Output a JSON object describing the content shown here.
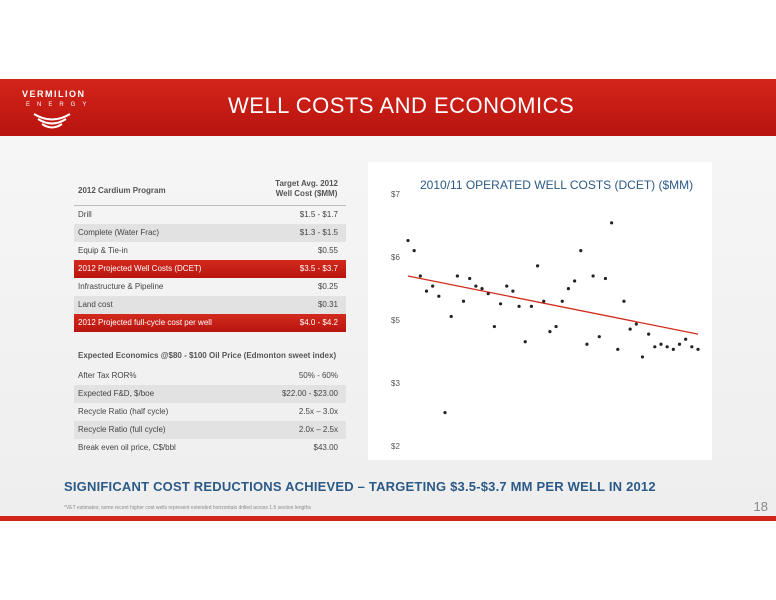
{
  "logo": {
    "name": "VERMILION",
    "sub": "ENERGY"
  },
  "slide_title": "WELL COSTS AND ECONOMICS",
  "program_table": {
    "header_left": "2012 Cardium Program",
    "header_right_line1": "Target Avg. 2012",
    "header_right_line2": "Well Cost ($MM)",
    "rows": [
      {
        "label": "Drill",
        "value": "$1.5 - $1.7"
      },
      {
        "label": "Complete (Water Frac)",
        "value": "$1.3 - $1.5"
      },
      {
        "label": "Equip & Tie-in",
        "value": "$0.55"
      },
      {
        "label": "2012 Projected Well Costs (DCET)",
        "value": "$3.5 - $3.7"
      },
      {
        "label": "Infrastructure & Pipeline",
        "value": "$0.25"
      },
      {
        "label": "Land cost",
        "value": "$0.31"
      },
      {
        "label": "2012 Projected full-cycle cost per well",
        "value": "$4.0 - $4.2"
      }
    ]
  },
  "economics": {
    "heading": "Expected Economics @$80 - $100 Oil Price (Edmonton sweet index)",
    "rows": [
      {
        "label": "After Tax ROR%",
        "value": "50% - 60%"
      },
      {
        "label": "Expected F&D, $/boe",
        "value": "$22.00 - $23.00"
      },
      {
        "label": "Recycle Ratio (half cycle)",
        "value": "2.5x – 3.0x"
      },
      {
        "label": "Recycle Ratio (full cycle)",
        "value": "2.0x – 2.5x"
      },
      {
        "label": "Break even oil price, C$/bbl",
        "value": "$43.00"
      }
    ]
  },
  "chart_data": {
    "type": "scatter",
    "title": "2010/11 OPERATED WELL COSTS (DCET)  ($MM)",
    "ylim": [
      2,
      7
    ],
    "yticks": [
      "$7",
      "$6",
      "$5",
      "$3",
      "$2"
    ],
    "points_y": [
      6.1,
      5.9,
      5.4,
      5.1,
      5.2,
      5.0,
      2.7,
      4.6,
      5.4,
      4.9,
      5.35,
      5.2,
      5.15,
      5.05,
      4.4,
      4.85,
      5.2,
      5.1,
      4.8,
      4.1,
      4.8,
      5.6,
      4.9,
      4.3,
      4.4,
      4.9,
      5.15,
      5.3,
      5.9,
      4.05,
      5.4,
      4.2,
      5.35,
      6.45,
      3.95,
      4.9,
      4.35,
      4.45,
      3.8,
      4.25,
      4.0,
      4.05,
      4.0,
      3.95,
      4.05,
      4.15,
      4.0,
      3.95
    ],
    "trendline": [
      5.4,
      4.25
    ],
    "colors": {
      "points": "#222222",
      "trendline": "#d32a1e"
    }
  },
  "banner": "SIGNIFICANT COST REDUCTIONS ACHIEVED – TARGETING $3.5-$3.7 MM PER WELL IN 2012",
  "footnote": "*VET estimates; some recent higher cost wells represent extended horizontals drilled across 1.5 section lengths",
  "page_number": "18",
  "colors": {
    "brand_red": "#d3251b",
    "title_blue": "#2b5a87"
  }
}
